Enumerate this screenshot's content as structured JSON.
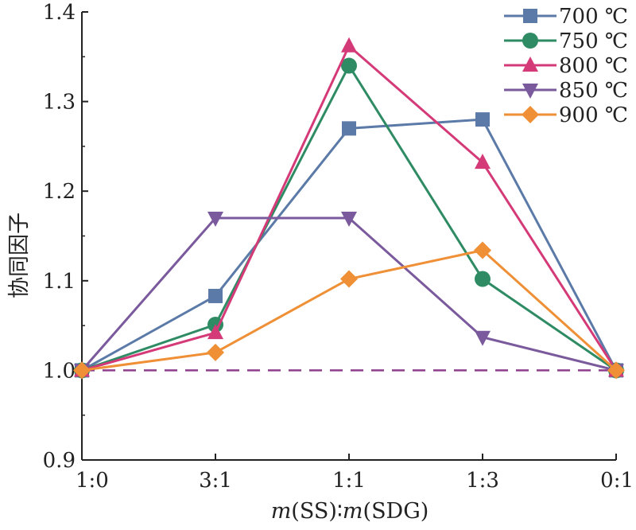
{
  "chart_data": {
    "type": "line",
    "title": "",
    "xlabel": "m(SS)∶m(SDG)",
    "xlabel_parts": [
      "m",
      "(SS)∶",
      "m",
      "(SDG)"
    ],
    "ylabel": "协同因子",
    "categories": [
      "1:0",
      "3:1",
      "1:1",
      "1:3",
      "0:1"
    ],
    "ylim": [
      0.9,
      1.4
    ],
    "yticks": [
      "0.9",
      "1.0",
      "1.1",
      "1.2",
      "1.3",
      "1.4"
    ],
    "grid": false,
    "legend_position": "top-right",
    "reference_line": {
      "y": 1.0,
      "style": "dashed",
      "color": "#8e3f8c"
    },
    "series": [
      {
        "name": "700 ℃",
        "values": [
          1.0,
          1.083,
          1.27,
          1.28,
          1.0
        ],
        "color": "#5b7aa8",
        "marker": "square"
      },
      {
        "name": "750 ℃",
        "values": [
          1.0,
          1.051,
          1.34,
          1.102,
          1.0
        ],
        "color": "#2e8b63",
        "marker": "circle"
      },
      {
        "name": "800 ℃",
        "values": [
          1.0,
          1.042,
          1.362,
          1.232,
          1.0
        ],
        "color": "#d53a78",
        "marker": "triangle-up"
      },
      {
        "name": "850 ℃",
        "values": [
          1.0,
          1.17,
          1.17,
          1.037,
          1.0
        ],
        "color": "#7a5a9c",
        "marker": "triangle-down"
      },
      {
        "name": "900 ℃",
        "values": [
          1.0,
          1.02,
          1.102,
          1.134,
          1.0
        ],
        "color": "#ef8f36",
        "marker": "diamond"
      }
    ]
  }
}
